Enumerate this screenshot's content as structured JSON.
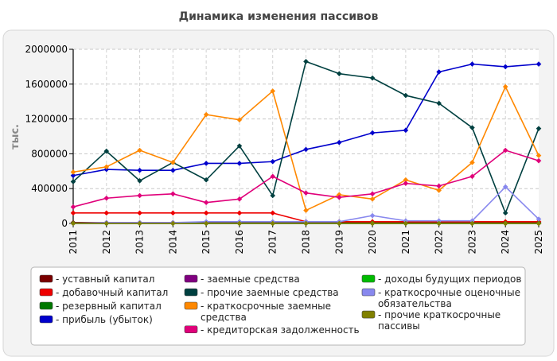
{
  "chart_data": {
    "type": "line",
    "title": "Динамика изменения пассивов",
    "ylabel": "тыс.",
    "xlabel": "",
    "x": [
      "2011",
      "2012",
      "2013",
      "2014",
      "2015",
      "2016",
      "2017",
      "2018",
      "2019",
      "2020",
      "2021",
      "2022",
      "2023",
      "2024",
      "2025"
    ],
    "ylim": [
      0,
      2000000
    ],
    "yticks": [
      0,
      400000,
      800000,
      1200000,
      1600000,
      2000000
    ],
    "grid": true,
    "legend_position": "bottom",
    "series": [
      {
        "name": "- уставный капитал",
        "color": "#7a0000",
        "values": [
          10000,
          10000,
          10000,
          10000,
          10000,
          10000,
          10000,
          10000,
          10000,
          10000,
          10000,
          10000,
          10000,
          10000,
          10000
        ]
      },
      {
        "name": "- добавочный капитал",
        "color": "#ee0000",
        "values": [
          120000,
          120000,
          120000,
          120000,
          120000,
          120000,
          120000,
          20000,
          20000,
          20000,
          20000,
          20000,
          20000,
          20000,
          20000
        ]
      },
      {
        "name": "- резервный капитал",
        "color": "#007700",
        "values": [
          3000,
          3000,
          3000,
          3000,
          3000,
          3000,
          3000,
          3000,
          3000,
          3000,
          3000,
          3000,
          3000,
          3000,
          3000
        ]
      },
      {
        "name": "- прибыль (убыток)",
        "color": "#0000cc",
        "values": [
          550000,
          620000,
          610000,
          610000,
          690000,
          690000,
          710000,
          850000,
          930000,
          1040000,
          1070000,
          1740000,
          1830000,
          1800000,
          1830000
        ]
      },
      {
        "name": "- заемные средства",
        "color": "#800080",
        "values": [
          0,
          0,
          0,
          0,
          0,
          0,
          0,
          0,
          0,
          0,
          0,
          0,
          0,
          0,
          0
        ]
      },
      {
        "name": "- прочие заемные средства",
        "color": "#004040",
        "values": [
          480000,
          830000,
          490000,
          700000,
          500000,
          890000,
          320000,
          1860000,
          1720000,
          1670000,
          1470000,
          1380000,
          1100000,
          120000,
          1090000
        ]
      },
      {
        "name": "- краткосрочные заемные средства",
        "color": "#ff8800",
        "values": [
          590000,
          650000,
          840000,
          700000,
          1250000,
          1190000,
          1520000,
          150000,
          330000,
          280000,
          500000,
          380000,
          700000,
          1570000,
          780000
        ]
      },
      {
        "name": "- кредиторская задолженность",
        "color": "#e0007a",
        "values": [
          190000,
          290000,
          320000,
          340000,
          240000,
          280000,
          540000,
          350000,
          300000,
          340000,
          460000,
          430000,
          540000,
          840000,
          720000
        ]
      },
      {
        "name": "- доходы будущих периодов",
        "color": "#00bb00",
        "values": [
          0,
          0,
          0,
          0,
          0,
          0,
          0,
          0,
          0,
          0,
          0,
          0,
          0,
          0,
          0
        ]
      },
      {
        "name": "- краткосрочные оценочные обязательства",
        "color": "#8888ee",
        "values": [
          0,
          10000,
          10000,
          10000,
          20000,
          20000,
          20000,
          20000,
          20000,
          90000,
          30000,
          30000,
          30000,
          420000,
          50000
        ]
      },
      {
        "name": "- прочие краткосрочные пассивы",
        "color": "#808000",
        "values": [
          0,
          0,
          0,
          0,
          0,
          0,
          0,
          0,
          0,
          0,
          0,
          0,
          0,
          0,
          0
        ]
      }
    ]
  }
}
